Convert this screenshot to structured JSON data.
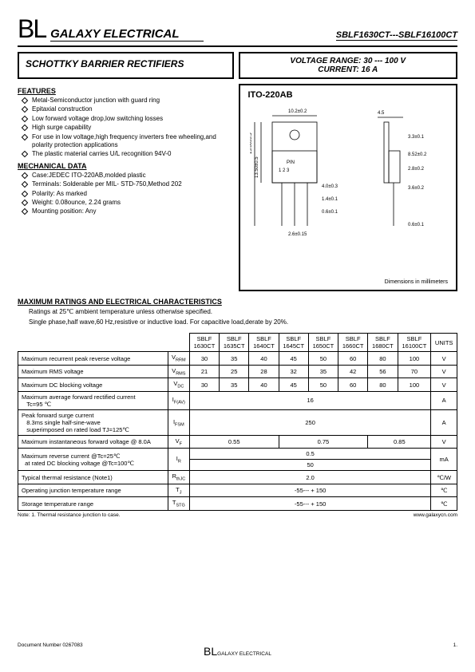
{
  "header": {
    "bl": "BL",
    "company": "GALAXY ELECTRICAL",
    "partno": "SBLF1630CT---SBLF16100CT"
  },
  "title": "SCHOTTKY BARRIER RECTIFIERS",
  "range": {
    "volt": "VOLTAGE  RANGE: 30 --- 100 V",
    "curr": "CURRENT: 16 A"
  },
  "features": {
    "hdr": "FEATURES",
    "items": [
      "Metal-Semiconductor junction with guard ring",
      "Epitaxial construction",
      "Low forward voltage drop,low switching losses",
      "High surge capability",
      "For use in low voltage,high frequency inverters free wheeling,and polarity protection applications",
      "The plastic material carries U/L  recognition 94V-0"
    ]
  },
  "mech": {
    "hdr": "MECHANICAL DATA",
    "items": [
      "Case:JEDEC ITO-220AB,molded plastic",
      "Terminals: Solderable  per MIL- STD-750,Method 202",
      "Polarity: As marked",
      "Weight:  0.08ounce, 2.24 grams",
      "Mounting position: Any"
    ]
  },
  "pkg": {
    "label": "ITO-220AB",
    "dimnote": "Dimensions in millimeters"
  },
  "dims": {
    "w": "10.2±0.2",
    "h": "15.00±0.5",
    "hb": "13.50±0.5",
    "pin": "PIN",
    "pins": "1    2    3",
    "d1": "4.0±0.3",
    "d2": "1.4±0.1",
    "d3": "0.6±0.1",
    "d4": "2.6±0.15",
    "s1": "4.5",
    "s2": "3.3±0.1",
    "s3": "8.52±0.2",
    "s4": "2.8±0.2",
    "s5": "3.6±0.2",
    "s6": "0.6±0.1"
  },
  "max": {
    "hdr": "MAXIMUM RATINGS AND ELECTRICAL CHARACTERISTICS",
    "n1": "Ratings at 25℃ ambient temperature unless otherwise specified.",
    "n2": "Single phase,half wave,60 Hz,resistive or inductive load. For capacitive load,derate by 20%."
  },
  "table": {
    "cols": [
      "SBLF 1630CT",
      "SBLF 1635CT",
      "SBLF 1640CT",
      "SBLF 1645CT",
      "SBLF 1650CT",
      "SBLF 1660CT",
      "SBLF 1680CT",
      "SBLF 16100CT"
    ],
    "unitshdr": "UNITS",
    "rows": [
      {
        "p": "Maximum recurrent peak reverse voltage",
        "s": "V",
        "sub": "RRM",
        "v": [
          "30",
          "35",
          "40",
          "45",
          "50",
          "60",
          "80",
          "100"
        ],
        "u": "V"
      },
      {
        "p": "Maximum RMS voltage",
        "s": "V",
        "sub": "RMS",
        "v": [
          "21",
          "25",
          "28",
          "32",
          "35",
          "42",
          "56",
          "70"
        ],
        "u": "V"
      },
      {
        "p": "Maximum DC blocking voltage",
        "s": "V",
        "sub": "DC",
        "v": [
          "30",
          "35",
          "40",
          "45",
          "50",
          "60",
          "80",
          "100"
        ],
        "u": "V"
      }
    ],
    "ifav": {
      "p": "Maximum average forward rectified current",
      "p2": "Tc=95 ℃",
      "s": "I",
      "sub": "F(AV)",
      "v": "16",
      "u": "A"
    },
    "ifsm": {
      "p": "Peak forward surge current",
      "p2": "8.3ms single half-sine-wave",
      "p3": "superimposed on rated load    TJ=125℃",
      "s": "I",
      "sub": "FSM",
      "v": "250",
      "u": "A"
    },
    "vf": {
      "p": "Maximum instantaneous forward voltage @ 8.0A",
      "s": "V",
      "sub": "F",
      "v": [
        "0.55",
        "0.75",
        "0.85"
      ],
      "u": "V"
    },
    "ir": {
      "p": "Maximum reverse current      @Tc=25℃",
      "p2": "at rated DC blocking  voltage   @Tc=100℃",
      "s": "I",
      "sub": "R",
      "v": [
        "0.5",
        "50"
      ],
      "u": "mA"
    },
    "rth": {
      "p": "Typical thermal resistance        (Note1)",
      "s": "R",
      "sub": "thJC",
      "v": "2.0",
      "u": "℃/W"
    },
    "tj": {
      "p": "Operating junction temperature range",
      "s": "T",
      "sub": "J",
      "v": "-55--- + 150",
      "u": "℃"
    },
    "tstg": {
      "p": "Storage temperature range",
      "s": "T",
      "sub": "STG",
      "v": "-55--- + 150",
      "u": "℃"
    }
  },
  "note1": "Note: 1. Thermal resistance junction to case.",
  "url": "www.galaxycn.com",
  "footer": {
    "doc": "Document  Number  0267083",
    "bl": "BL",
    "company": "GALAXY ELECTRICAL",
    "page": "1."
  }
}
